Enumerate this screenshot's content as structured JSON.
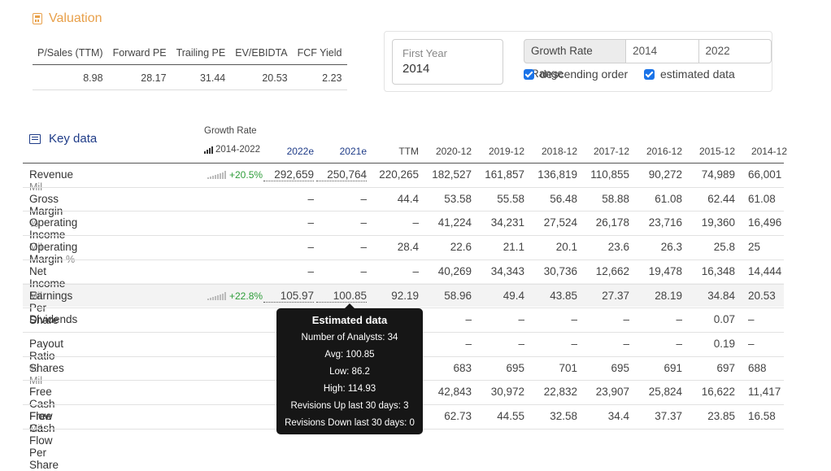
{
  "valuation": {
    "title": "Valuation",
    "headers": [
      "P/Sales (TTM)",
      "Forward PE",
      "Trailing PE",
      "EV/EBIDTA",
      "FCF Yield"
    ],
    "values": [
      "8.98",
      "28.17",
      "31.44",
      "20.53",
      "2.23"
    ]
  },
  "controls": {
    "first_year_label": "First Year",
    "first_year_value": "2014",
    "growth_rate_label": "Growth Rate Range",
    "range_from": "2014",
    "range_to": "2022",
    "descending_label": "descending order",
    "descending_checked": true,
    "estimated_label": "estimated data",
    "estimated_checked": true
  },
  "key_data": {
    "title": "Key data",
    "growth_rate_label": "Growth Rate",
    "growth_rate_years": "2014-2022",
    "columns": [
      "2022e",
      "2021e",
      "TTM",
      "2020-12",
      "2019-12",
      "2018-12",
      "2017-12",
      "2016-12",
      "2015-12",
      "2014-12"
    ],
    "rows": [
      {
        "label": "Revenue",
        "unit": "Mil",
        "growth": "+20.5%",
        "values": [
          "292,659",
          "250,764",
          "220,265",
          "182,527",
          "161,857",
          "136,819",
          "110,855",
          "90,272",
          "74,989",
          "66,001"
        ]
      },
      {
        "label": "Gross Margin",
        "unit": "%",
        "growth": "",
        "values": [
          "–",
          "–",
          "44.4",
          "53.58",
          "55.58",
          "56.48",
          "58.88",
          "61.08",
          "62.44",
          "61.08"
        ]
      },
      {
        "label": "Operating Income",
        "unit": "Mil",
        "growth": "",
        "values": [
          "–",
          "–",
          "–",
          "41,224",
          "34,231",
          "27,524",
          "26,178",
          "23,716",
          "19,360",
          "16,496"
        ]
      },
      {
        "label": "Operating Margin",
        "unit": "%",
        "growth": "",
        "values": [
          "–",
          "–",
          "28.4",
          "22.6",
          "21.1",
          "20.1",
          "23.6",
          "26.3",
          "25.8",
          "25"
        ]
      },
      {
        "label": "Net Income",
        "unit": "Mil",
        "growth": "",
        "values": [
          "–",
          "–",
          "–",
          "40,269",
          "34,343",
          "30,736",
          "12,662",
          "19,478",
          "16,348",
          "14,444"
        ]
      },
      {
        "label": "Earnings Per Share",
        "unit": "",
        "growth": "+22.8%",
        "values": [
          "105.97",
          "100.85",
          "92.19",
          "58.96",
          "49.4",
          "43.85",
          "27.37",
          "28.19",
          "34.84",
          "20.53"
        ]
      },
      {
        "label": "Dividends",
        "unit": "",
        "growth": "",
        "values": [
          "",
          "",
          "",
          "–",
          "–",
          "–",
          "–",
          "–",
          "0.07",
          "–"
        ]
      },
      {
        "label": "Payout Ratio",
        "unit": "%",
        "growth": "",
        "values": [
          "",
          "",
          "",
          "–",
          "–",
          "–",
          "–",
          "–",
          "0.19",
          "–"
        ]
      },
      {
        "label": "Shares",
        "unit": "Mil",
        "growth": "",
        "values": [
          "",
          "",
          "",
          "683",
          "695",
          "701",
          "695",
          "691",
          "697",
          "688"
        ]
      },
      {
        "label": "Free Cash Flow",
        "unit": "Mil",
        "growth": "",
        "values": [
          "",
          "",
          "",
          "42,843",
          "30,972",
          "22,832",
          "23,907",
          "25,824",
          "16,622",
          "11,417"
        ]
      },
      {
        "label": "Free Cash Flow Per Share",
        "unit": "",
        "growth": "",
        "values": [
          "",
          "",
          "",
          "62.73",
          "44.55",
          "32.58",
          "34.4",
          "37.37",
          "23.85",
          "16.58"
        ]
      }
    ]
  },
  "tooltip": {
    "title": "Estimated data",
    "lines": [
      "Number of Analysts: 34",
      "Avg: 100.85",
      "Low: 86.2",
      "High: 114.93",
      "Revisions Up last 30 days: 3",
      "Revisions Down last 30 days: 0"
    ]
  },
  "colors": {
    "valuation_accent": "#e8a04a",
    "key_data_accent": "#1f3c88",
    "growth_positive": "#2e9d3a",
    "checkbox": "#1a73e8",
    "tooltip_bg": "#161616"
  },
  "icons": {
    "valuation": "calculator-icon",
    "key_data": "list-icon",
    "growth": "bar-chart-icon",
    "sparkline": "sparkline-icon"
  }
}
